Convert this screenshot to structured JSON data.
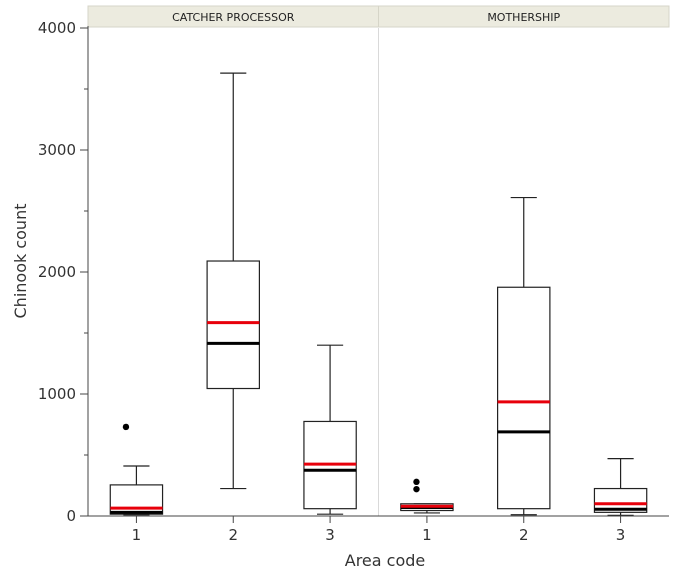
{
  "chart_data": {
    "type": "boxplot",
    "xlabel": "Area code",
    "ylabel": "Chinook count",
    "ylim": [
      0,
      4000
    ],
    "yticks": [
      0,
      1000,
      2000,
      3000,
      4000
    ],
    "categories": [
      "1",
      "2",
      "3"
    ],
    "colors": {
      "median": "#000000",
      "mean": "#e8000b",
      "strip": "#ecebdf",
      "divider": "#d9d9d9"
    },
    "panels": [
      {
        "name": "CATCHER PROCESSOR",
        "boxes": [
          {
            "category": "1",
            "whisker_low": 10,
            "q1": 15,
            "median": 30,
            "mean": 65,
            "q3": 255,
            "whisker_high": 410,
            "outliers": [
              730
            ]
          },
          {
            "category": "2",
            "whisker_low": 225,
            "q1": 1045,
            "median": 1415,
            "mean": 1585,
            "q3": 2090,
            "whisker_high": 3630,
            "outliers": []
          },
          {
            "category": "3",
            "whisker_low": 15,
            "q1": 60,
            "median": 375,
            "mean": 425,
            "q3": 775,
            "whisker_high": 1400,
            "outliers": []
          }
        ]
      },
      {
        "name": "MOTHERSHIP",
        "boxes": [
          {
            "category": "1",
            "whisker_low": 25,
            "q1": 45,
            "median": 70,
            "mean": 80,
            "q3": 100,
            "whisker_high": 100,
            "outliers": [
              220,
              280
            ]
          },
          {
            "category": "2",
            "whisker_low": 10,
            "q1": 60,
            "median": 690,
            "mean": 935,
            "q3": 1875,
            "whisker_high": 2610,
            "outliers": []
          },
          {
            "category": "3",
            "whisker_low": 5,
            "q1": 30,
            "median": 55,
            "mean": 100,
            "q3": 225,
            "whisker_high": 470,
            "outliers": []
          }
        ]
      }
    ]
  }
}
